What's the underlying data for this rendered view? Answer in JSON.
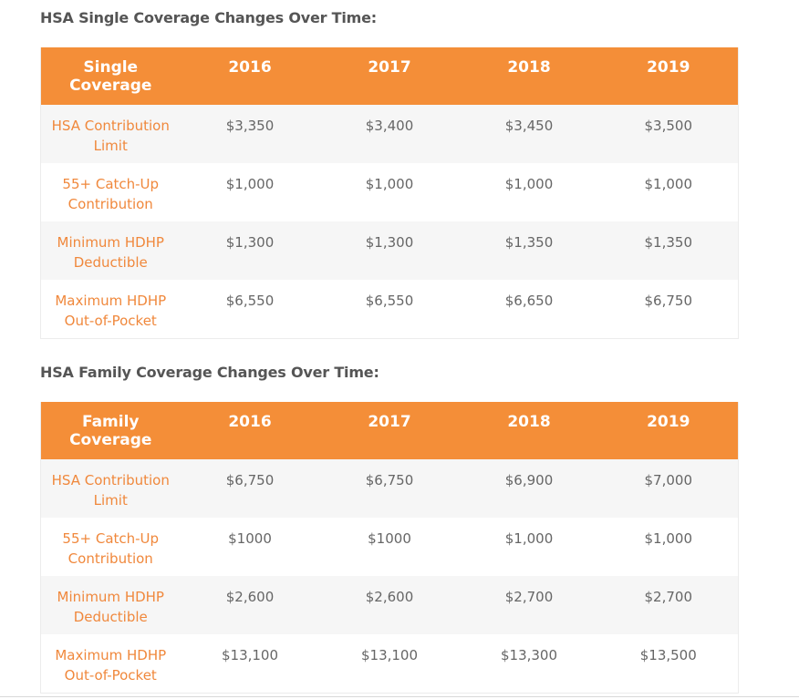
{
  "single": {
    "title": "HSA Single Coverage Changes Over Time:",
    "header": [
      "Single Coverage",
      "2016",
      "2017",
      "2018",
      "2019"
    ],
    "rows": [
      {
        "label": "HSA Contribution Limit",
        "values": [
          "$3,350",
          "$3,400",
          "$3,450",
          "$3,500"
        ]
      },
      {
        "label": "55+ Catch-Up Contribution",
        "values": [
          "$1,000",
          "$1,000",
          "$1,000",
          "$1,000"
        ]
      },
      {
        "label": "Minimum HDHP Deductible",
        "values": [
          "$1,300",
          "$1,300",
          "$1,350",
          "$1,350"
        ]
      },
      {
        "label": "Maximum HDHP Out-of-Pocket",
        "values": [
          "$6,550",
          "$6,550",
          "$6,650",
          "$6,750"
        ]
      }
    ]
  },
  "family": {
    "title": "HSA Family Coverage Changes Over Time:",
    "header": [
      "Family Coverage",
      "2016",
      "2017",
      "2018",
      "2019"
    ],
    "rows": [
      {
        "label": "HSA Contribution Limit",
        "values": [
          "$6,750",
          "$6,750",
          "$6,900",
          "$7,000"
        ]
      },
      {
        "label": "55+ Catch-Up Contribution",
        "values": [
          "$1000",
          "$1000",
          "$1,000",
          "$1,000"
        ]
      },
      {
        "label": "Minimum HDHP Deductible",
        "values": [
          "$2,600",
          "$2,600",
          "$2,700",
          "$2,700"
        ]
      },
      {
        "label": "Maximum HDHP Out-of-Pocket",
        "values": [
          "$13,100",
          "$13,100",
          "$13,300",
          "$13,500"
        ]
      }
    ]
  },
  "colors": {
    "header_bg": "#f48e38",
    "label_text": "#f0883c",
    "value_text": "#666666",
    "stripe_bg": "#f6f6f6"
  }
}
